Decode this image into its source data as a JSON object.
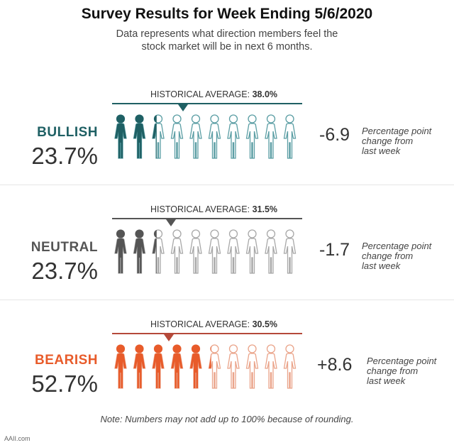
{
  "title": "Survey Results for Week Ending 5/6/2020",
  "subtitle_line1": "Data represents what direction members feel the",
  "subtitle_line2": "stock market will be in next 6 months.",
  "hist_prefix": "HISTORICAL AVERAGE:",
  "change_text_line1": "Percentage point",
  "change_text_line2": "change from",
  "change_text_line3": "last week",
  "sections": [
    {
      "label": "BULLISH",
      "percent_text": "23.7%",
      "percent": 23.7,
      "historical_text": "38.0%",
      "historical": 38.0,
      "change": "-6.9",
      "color": "#1f6064",
      "line_color": "#1f6064",
      "outline_color": "#5b9ea4"
    },
    {
      "label": "NEUTRAL",
      "percent_text": "23.7%",
      "percent": 23.7,
      "historical_text": "31.5%",
      "historical": 31.5,
      "change": "-1.7",
      "color": "#555555",
      "line_color": "#555555",
      "outline_color": "#a8a8a8"
    },
    {
      "label": "BEARISH",
      "percent_text": "52.7%",
      "percent": 52.7,
      "historical_text": "30.5%",
      "historical": 30.5,
      "change": "+8.6",
      "color": "#e85b2a",
      "line_color": "#b5493a",
      "outline_color": "#eaa48a"
    }
  ],
  "note": "Note: Numbers may not add up to 100% because of rounding.",
  "source": "AAII.com"
}
